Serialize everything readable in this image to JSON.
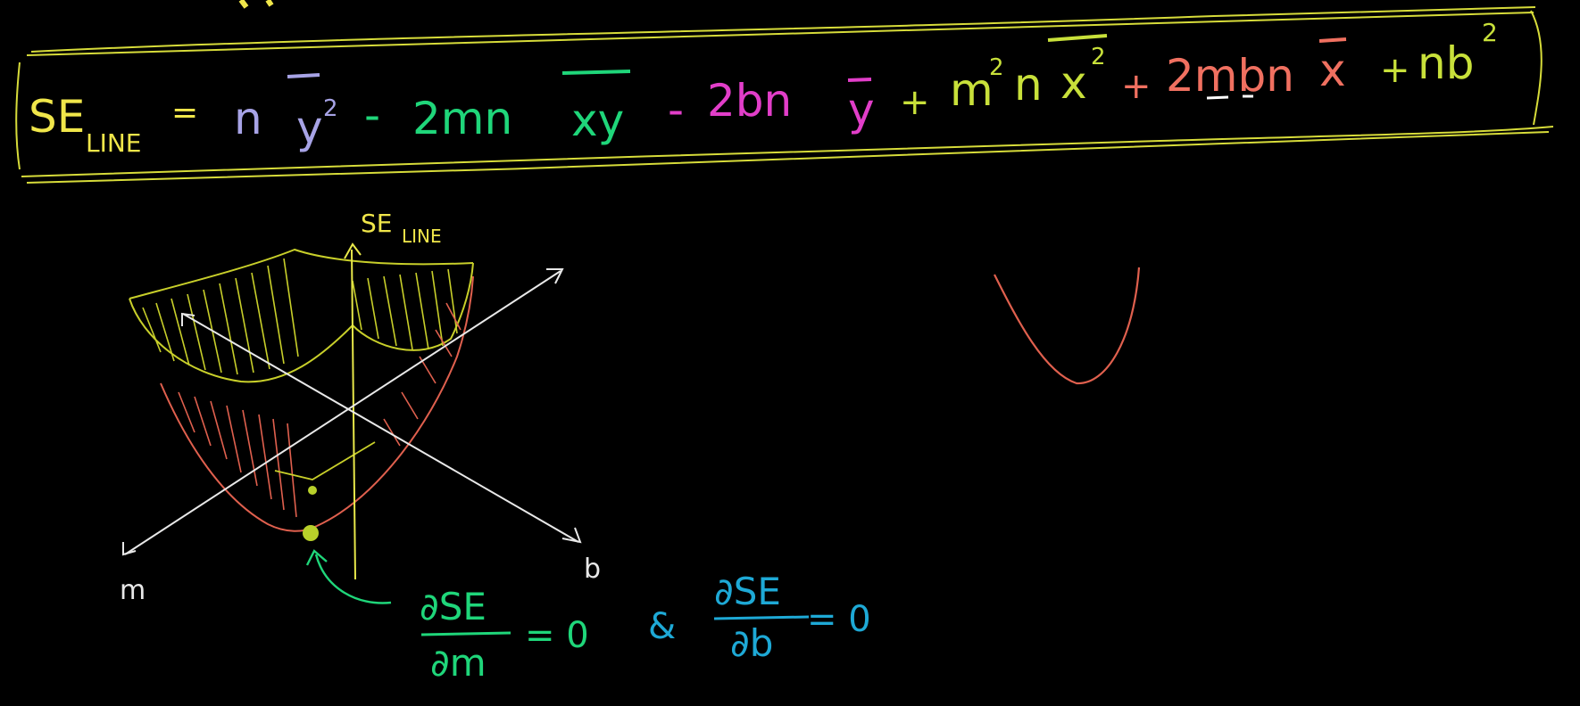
{
  "colors": {
    "background": "#000000",
    "yellow": "#f0e64a",
    "lavender": "#a7a3e6",
    "green": "#1fd67a",
    "magenta": "#e23ec9",
    "lime": "#c8e03a",
    "salmon": "#f07060",
    "white": "#e8e8e8",
    "cyan": "#1ea9d6"
  },
  "equation": {
    "lhs_main": "SE",
    "lhs_sub": "LINE",
    "equals": "=",
    "t1_coef": "n",
    "t1_var": "y",
    "t1_exp": "2",
    "op1": "-",
    "t2_coef": "2mn",
    "t2_var": "xy",
    "op2": "-",
    "t3_coef": "2bn",
    "t3_var": "y",
    "op3": "+",
    "t4_m": "m",
    "t4_m_exp": "2",
    "t4_n": "n",
    "t4_var": "x",
    "t4_exp": "2",
    "op4": "+",
    "t5_coef": "2mbn",
    "t5_var": "x",
    "op5": "+",
    "t6_coef": "nb",
    "t6_exp": "2"
  },
  "graph": {
    "z_label_main": "SE",
    "z_label_sub": "LINE",
    "m_label": "m",
    "b_label": "b"
  },
  "conditions": {
    "d1_num": "∂SE",
    "d1_den": "∂m",
    "d1_eq": "= 0",
    "and": "&",
    "d2_num": "∂SE",
    "d2_den": "∂b",
    "d2_eq": "= 0"
  }
}
